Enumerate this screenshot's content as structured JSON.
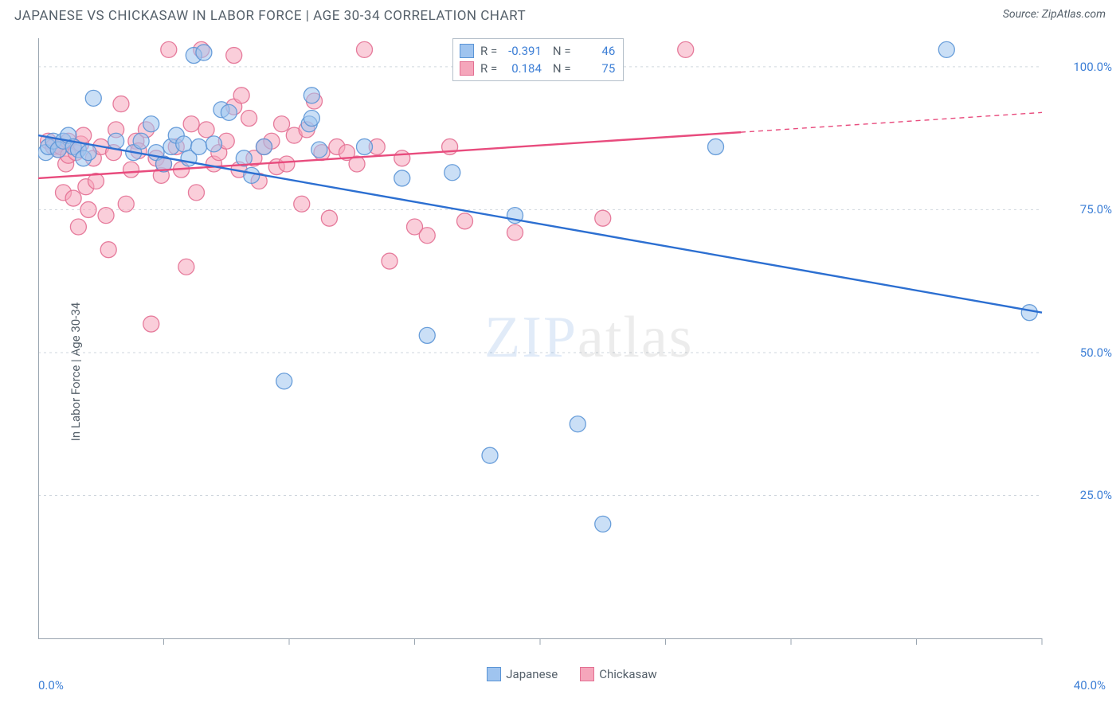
{
  "header": {
    "title": "JAPANESE VS CHICKASAW IN LABOR FORCE | AGE 30-34 CORRELATION CHART",
    "source": "Source: ZipAtlas.com"
  },
  "ylabel": "In Labor Force | Age 30-34",
  "watermark": {
    "zip": "ZIP",
    "atlas": "atlas"
  },
  "chart": {
    "type": "scatter",
    "background_color": "#ffffff",
    "grid_color": "#cfd6dd",
    "axis_line_color": "#9aa5b0",
    "xlim": [
      0,
      40
    ],
    "ylim": [
      0,
      105
    ],
    "xticks_minor": [
      5,
      10,
      15,
      20,
      25,
      30,
      35,
      40
    ],
    "ytick_labels": [
      {
        "v": 25,
        "label": "25.0%"
      },
      {
        "v": 50,
        "label": "50.0%"
      },
      {
        "v": 75,
        "label": "75.0%"
      },
      {
        "v": 100,
        "label": "100.0%"
      }
    ],
    "x_left_label": "0.0%",
    "x_right_label": "40.0%",
    "marker_radius": 10,
    "marker_opacity": 0.55,
    "marker_stroke_opacity": 0.9,
    "trend_line_width": 2.4,
    "series": [
      {
        "name": "Chickasaw",
        "fill": "#f5a6bb",
        "stroke": "#e36f92",
        "line_color": "#e84b7d",
        "r": 0.184,
        "n": 75,
        "trend": {
          "x1": 0,
          "y1": 80.5,
          "x2": 40,
          "y2": 92,
          "solid_until_x": 28
        },
        "points": [
          [
            0.4,
            87
          ],
          [
            0.6,
            86
          ],
          [
            0.8,
            85.5
          ],
          [
            0.9,
            86
          ],
          [
            1.0,
            78
          ],
          [
            1.1,
            83
          ],
          [
            1.2,
            84.5
          ],
          [
            1.2,
            87
          ],
          [
            1.4,
            77
          ],
          [
            1.5,
            85
          ],
          [
            1.6,
            72
          ],
          [
            1.7,
            86.5
          ],
          [
            1.8,
            88
          ],
          [
            1.9,
            79
          ],
          [
            2.0,
            75
          ],
          [
            2.2,
            84
          ],
          [
            2.3,
            80
          ],
          [
            2.5,
            86
          ],
          [
            2.7,
            74
          ],
          [
            2.8,
            68
          ],
          [
            3.0,
            85
          ],
          [
            3.1,
            89
          ],
          [
            3.3,
            93.5
          ],
          [
            3.5,
            76
          ],
          [
            3.7,
            82
          ],
          [
            3.9,
            87
          ],
          [
            4.0,
            85.3
          ],
          [
            4.3,
            89
          ],
          [
            4.5,
            55
          ],
          [
            4.7,
            84
          ],
          [
            4.9,
            81
          ],
          [
            5.0,
            83
          ],
          [
            5.2,
            103
          ],
          [
            5.5,
            86
          ],
          [
            5.7,
            82
          ],
          [
            5.9,
            65
          ],
          [
            6.1,
            90
          ],
          [
            6.3,
            78
          ],
          [
            6.5,
            103
          ],
          [
            6.7,
            89
          ],
          [
            7.0,
            83
          ],
          [
            7.2,
            85
          ],
          [
            7.5,
            87
          ],
          [
            7.8,
            102
          ],
          [
            7.8,
            93
          ],
          [
            8.0,
            82
          ],
          [
            8.1,
            95
          ],
          [
            8.4,
            91
          ],
          [
            8.6,
            84
          ],
          [
            8.8,
            80
          ],
          [
            9.0,
            86
          ],
          [
            9.3,
            87
          ],
          [
            9.5,
            82.5
          ],
          [
            9.7,
            90
          ],
          [
            9.9,
            83
          ],
          [
            10.2,
            88
          ],
          [
            10.5,
            76
          ],
          [
            10.7,
            89
          ],
          [
            11.0,
            94
          ],
          [
            11.3,
            85
          ],
          [
            11.6,
            73.5
          ],
          [
            11.9,
            86
          ],
          [
            12.3,
            85
          ],
          [
            12.7,
            83
          ],
          [
            13.0,
            103
          ],
          [
            13.5,
            86
          ],
          [
            14.0,
            66
          ],
          [
            14.5,
            84
          ],
          [
            15.0,
            72
          ],
          [
            15.5,
            70.5
          ],
          [
            16.4,
            86
          ],
          [
            17.0,
            73
          ],
          [
            19.0,
            71
          ],
          [
            22.5,
            73.5
          ],
          [
            25.8,
            103
          ]
        ]
      },
      {
        "name": "Japanese",
        "fill": "#9fc4ef",
        "stroke": "#5b95d6",
        "line_color": "#2c6fd1",
        "r": -0.391,
        "n": 46,
        "trend": {
          "x1": 0,
          "y1": 88,
          "x2": 40,
          "y2": 57,
          "solid_until_x": 40
        },
        "points": [
          [
            0.3,
            85
          ],
          [
            0.4,
            86
          ],
          [
            0.6,
            87
          ],
          [
            0.8,
            85.5
          ],
          [
            1.0,
            87
          ],
          [
            1.2,
            88
          ],
          [
            1.4,
            86
          ],
          [
            1.6,
            85.5
          ],
          [
            1.8,
            84
          ],
          [
            2.0,
            85
          ],
          [
            2.2,
            94.5
          ],
          [
            3.1,
            87
          ],
          [
            3.8,
            85
          ],
          [
            4.1,
            87
          ],
          [
            4.5,
            90
          ],
          [
            4.7,
            85
          ],
          [
            5.0,
            83
          ],
          [
            5.3,
            86
          ],
          [
            5.5,
            88
          ],
          [
            5.8,
            86.5
          ],
          [
            6.0,
            84
          ],
          [
            6.2,
            102
          ],
          [
            6.4,
            86
          ],
          [
            6.6,
            102.5
          ],
          [
            7.0,
            86.5
          ],
          [
            7.3,
            92.5
          ],
          [
            7.6,
            92
          ],
          [
            8.2,
            84
          ],
          [
            8.5,
            81
          ],
          [
            9.0,
            86
          ],
          [
            9.8,
            45
          ],
          [
            10.8,
            90
          ],
          [
            10.9,
            91
          ],
          [
            10.9,
            95
          ],
          [
            11.2,
            85.5
          ],
          [
            13.0,
            86
          ],
          [
            14.5,
            80.5
          ],
          [
            15.5,
            53
          ],
          [
            16.5,
            81.5
          ],
          [
            18.0,
            32
          ],
          [
            19.0,
            74
          ],
          [
            21.5,
            37.5
          ],
          [
            22.5,
            20
          ],
          [
            27.0,
            86
          ],
          [
            36.2,
            103
          ],
          [
            39.5,
            57
          ]
        ]
      }
    ]
  },
  "bottom_legend": [
    {
      "label": "Japanese",
      "fill": "#9fc4ef",
      "stroke": "#5b95d6"
    },
    {
      "label": "Chickasaw",
      "fill": "#f5a6bb",
      "stroke": "#e36f92"
    }
  ],
  "stats_legend": {
    "rows": [
      {
        "fill": "#9fc4ef",
        "stroke": "#5b95d6",
        "r": "-0.391",
        "n": "46"
      },
      {
        "fill": "#f5a6bb",
        "stroke": "#e36f92",
        "r": "0.184",
        "n": "75"
      }
    ]
  }
}
